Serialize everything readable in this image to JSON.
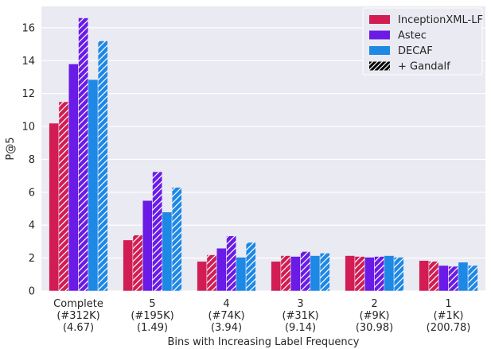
{
  "chart_data": {
    "type": "bar",
    "xlabel": "Bins with Increasing Label Frequency",
    "ylabel": "P@5",
    "ylim": [
      0,
      17.3
    ],
    "yticks": [
      0,
      2,
      4,
      6,
      8,
      10,
      12,
      14,
      16
    ],
    "grid": true,
    "legend_position": "top-right",
    "categories": [
      [
        "Complete",
        "(#312K)",
        "(4.67)"
      ],
      [
        "5",
        "(#195K)",
        "(1.49)"
      ],
      [
        "4",
        "(#74K)",
        "(3.94)"
      ],
      [
        "3",
        "(#31K)",
        "(9.14)"
      ],
      [
        "2",
        "(#9K)",
        "(30.98)"
      ],
      [
        "1",
        "(#1K)",
        "(200.78)"
      ]
    ],
    "series": [
      {
        "name": "InceptionXML-LF",
        "color": "#d11d53",
        "hatch": false,
        "values": [
          10.2,
          3.1,
          1.8,
          1.8,
          2.15,
          1.85
        ]
      },
      {
        "name": "InceptionXML-LF + Gandalf",
        "color": "#d11d53",
        "hatch": true,
        "values": [
          11.5,
          3.4,
          2.2,
          2.15,
          2.1,
          1.8
        ]
      },
      {
        "name": "Astec",
        "color": "#6a1be6",
        "hatch": false,
        "values": [
          13.8,
          5.5,
          2.6,
          2.1,
          2.05,
          1.55
        ]
      },
      {
        "name": "Astec + Gandalf",
        "color": "#6a1be6",
        "hatch": true,
        "values": [
          16.6,
          7.25,
          3.35,
          2.4,
          2.1,
          1.5
        ]
      },
      {
        "name": "DECAF",
        "color": "#1e88e5",
        "hatch": false,
        "values": [
          12.85,
          4.8,
          2.05,
          2.15,
          2.15,
          1.75
        ]
      },
      {
        "name": "DECAF + Gandalf",
        "color": "#1e88e5",
        "hatch": true,
        "values": [
          15.2,
          6.3,
          2.95,
          2.3,
          2.05,
          1.55
        ]
      }
    ],
    "legend": [
      {
        "label": "InceptionXML-LF",
        "color": "#d11d53",
        "hatch": false
      },
      {
        "label": "Astec",
        "color": "#6a1be6",
        "hatch": false
      },
      {
        "label": "DECAF",
        "color": "#1e88e5",
        "hatch": false
      },
      {
        "label": "+ Gandalf",
        "color": "#000000",
        "hatch": true
      }
    ]
  },
  "colors": {
    "background": "#eaeaf2",
    "grid": "#ffffff",
    "text": "#262626"
  }
}
